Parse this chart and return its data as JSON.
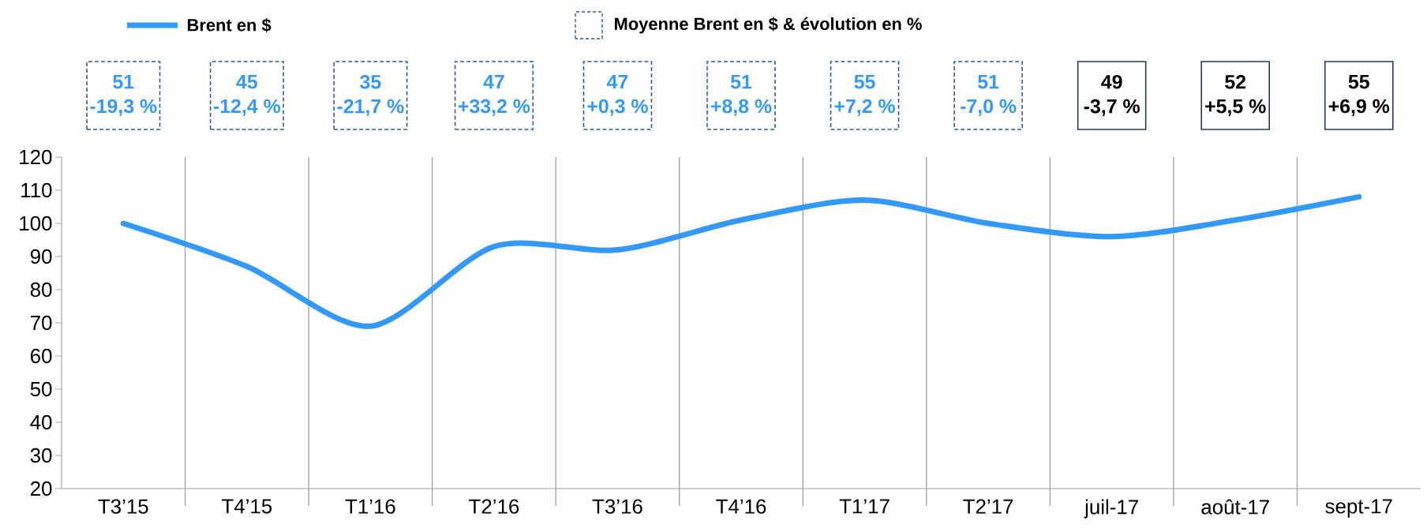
{
  "chart_data": {
    "type": "line",
    "categories": [
      "T3’15",
      "T4’15",
      "T1’16",
      "T2’16",
      "T3’16",
      "T4’16",
      "T1’17",
      "T2’17",
      "juil-17",
      "août-17",
      "sept-17"
    ],
    "series": [
      {
        "name": "Brent en $",
        "color": "#3399ff",
        "values": [
          100,
          87,
          69,
          93,
          92,
          101,
          107,
          100,
          96,
          101,
          108
        ]
      }
    ],
    "ylim": [
      20,
      120
    ],
    "yticks": [
      20,
      30,
      40,
      50,
      60,
      70,
      80,
      90,
      100,
      110,
      120
    ],
    "grid": "x",
    "legend": "top",
    "marker": "none",
    "line_style": "solid",
    "annotations": [
      "Moyenne Brent en $ & évolution en %",
      "51",
      "-19,3 %",
      "45",
      "-12,4 %",
      "35",
      "-21,7 %",
      "47",
      "+33,2 %",
      "47",
      "+0,3 %",
      "51",
      "+8,8 %",
      "55",
      "+7,2 %",
      "51",
      "-7,0 %",
      "49",
      "-3,7 %",
      "52",
      "+5,5 %",
      "55",
      "+6,9 %"
    ]
  }
}
